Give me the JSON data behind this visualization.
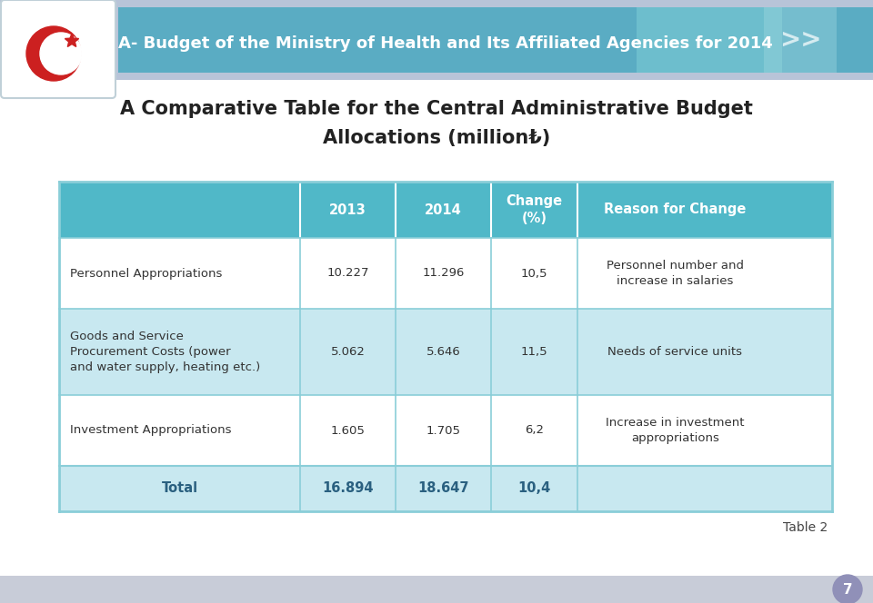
{
  "header_title": "A- Budget of the Ministry of Health and Its Affiliated Agencies for 2014",
  "main_title_line1": "A Comparative Table for the Central Administrative Budget",
  "main_title_line2": "Allocations (million₺)",
  "teal_header": "#6ab0c8",
  "teal_header_dark": "#4aa8c0",
  "teal_table_header": "#50b8c8",
  "teal_light": "#b8e0ea",
  "teal_row": "#c8e8f0",
  "white": "#ffffff",
  "text_dark": "#444444",
  "text_bold_color": "#2a6080",
  "header_bg": "#a0b8d0",
  "page_circle_color": "#9090b8",
  "bottom_band_color": "#c0c8d8",
  "col_headers": [
    "",
    "2013",
    "2014",
    "Change\n(%)",
    "Reason for Change"
  ],
  "rows": [
    {
      "label": "Personnel Appropriations",
      "val2013": "10.227",
      "val2014": "11.296",
      "change": "10,5",
      "reason": "Personnel number and\nincrease in salaries",
      "bg": "white"
    },
    {
      "label": "Goods and Service\nProcurement Costs (power\nand water supply, heating etc.)",
      "val2013": "5.062",
      "val2014": "5.646",
      "change": "11,5",
      "reason": "Needs of service units",
      "bg": "teal"
    },
    {
      "label": "Investment Appropriations",
      "val2013": "1.605",
      "val2014": "1.705",
      "change": "6,2",
      "reason": "Increase in investment\nappropriations",
      "bg": "white"
    }
  ],
  "total_row": {
    "label": "Total",
    "val2013": "16.894",
    "val2014": "18.647",
    "change": "10,4",
    "reason": ""
  },
  "table_note": "Table 2",
  "page_num": "7"
}
